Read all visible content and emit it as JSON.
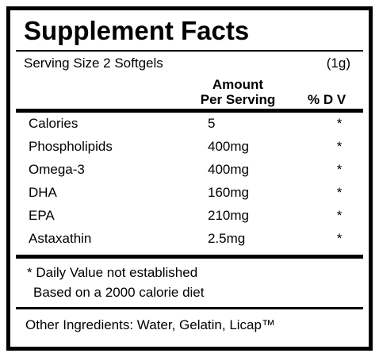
{
  "header": {
    "title": "Supplement Facts",
    "serving_size": "Serving Size 2 Softgels",
    "serving_weight": "(1g)"
  },
  "table": {
    "columns": {
      "amount": [
        "Amount",
        "Per Serving"
      ],
      "dv": "% D V"
    },
    "rows": [
      [
        "Calories",
        "5",
        "*"
      ],
      [
        "Phospholipids",
        "400mg",
        "*"
      ],
      [
        "Omega-3",
        "400mg",
        "*"
      ],
      [
        "DHA",
        "160mg",
        "*"
      ],
      [
        "EPA",
        "210mg",
        "*"
      ],
      [
        "Astaxathin",
        "2.5mg",
        "*"
      ]
    ]
  },
  "footnotes": [
    "* Daily Value not established",
    "Based on a 2000 calorie diet"
  ],
  "other_ingredients": "Other Ingredients: Water, Gelatin, Licap™"
}
